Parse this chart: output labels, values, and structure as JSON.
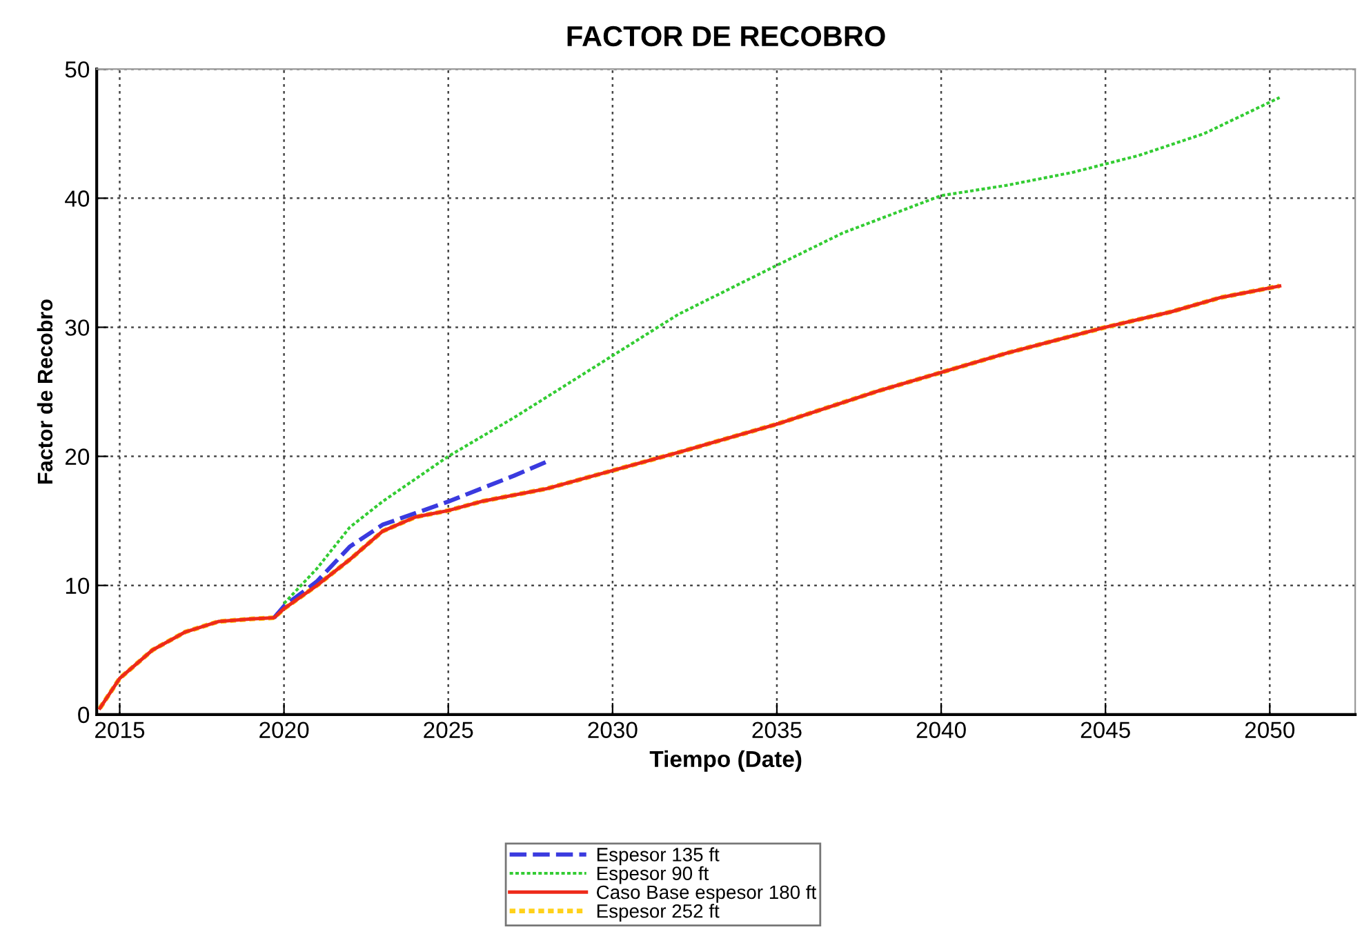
{
  "chart_data": {
    "type": "line",
    "title": "FACTOR DE RECOBRO",
    "xlabel": "Tiempo (Date)",
    "ylabel": "Factor de Recobro",
    "xlim": [
      2014.3,
      2052.6
    ],
    "xticks": [
      2015,
      2020,
      2025,
      2030,
      2035,
      2040,
      2045,
      2050
    ],
    "ylim": [
      0,
      50
    ],
    "yticks": [
      0,
      10,
      20,
      30,
      40,
      50
    ],
    "grid": true,
    "legend": "bottom",
    "series": [
      {
        "name": "Espesor 135 ft",
        "color": "#3a3adf",
        "line_style": "dashed",
        "x": [
          2019.7,
          2020,
          2021,
          2022,
          2023,
          2024,
          2025,
          2026,
          2027,
          2028.1
        ],
        "values": [
          7.5,
          8.4,
          10.3,
          13,
          14.7,
          15.6,
          16.5,
          17.5,
          18.5,
          19.7
        ]
      },
      {
        "name": "Espesor 90 ft",
        "color": "#33cc33",
        "line_style": "dotted",
        "x": [
          2020,
          2021,
          2022,
          2023,
          2025,
          2027,
          2030,
          2032,
          2035,
          2037,
          2040,
          2042,
          2044,
          2046,
          2048,
          2050.3
        ],
        "values": [
          8.6,
          11.3,
          14.5,
          16.5,
          20,
          23,
          27.8,
          31,
          34.8,
          37.3,
          40.2,
          41,
          42,
          43.3,
          45,
          47.8
        ]
      },
      {
        "name": "Caso Base espesor 180 ft",
        "color": "#ee2a1a",
        "line_style": "solid",
        "x": [
          2014.4,
          2015,
          2016,
          2017,
          2018,
          2019,
          2019.7,
          2020,
          2021,
          2022,
          2023,
          2024,
          2025,
          2026,
          2028,
          2030,
          2032,
          2035,
          2038,
          2040,
          2042,
          2045,
          2047,
          2048.5,
          2050.3
        ],
        "values": [
          0.5,
          2.8,
          5,
          6.4,
          7.2,
          7.4,
          7.5,
          8.2,
          10,
          12,
          14.2,
          15.3,
          15.8,
          16.5,
          17.5,
          18.9,
          20.3,
          22.5,
          25,
          26.5,
          28,
          30,
          31.2,
          32.3,
          33.2
        ]
      },
      {
        "name": "Espesor 252 ft",
        "color": "#ffd11a",
        "line_style": "dotted",
        "x": [
          2014.4,
          2015,
          2016,
          2017,
          2018,
          2019,
          2019.7,
          2020,
          2021,
          2022,
          2023,
          2024,
          2025,
          2026,
          2028,
          2030,
          2032,
          2035,
          2038,
          2040,
          2042,
          2045,
          2047,
          2048.5,
          2050.3
        ],
        "values": [
          0.5,
          2.8,
          5,
          6.4,
          7.2,
          7.4,
          7.5,
          8.2,
          10,
          12,
          14.2,
          15.3,
          15.8,
          16.5,
          17.5,
          18.9,
          20.3,
          22.5,
          25,
          26.5,
          28,
          30,
          31.2,
          32.3,
          33.2
        ]
      }
    ]
  }
}
